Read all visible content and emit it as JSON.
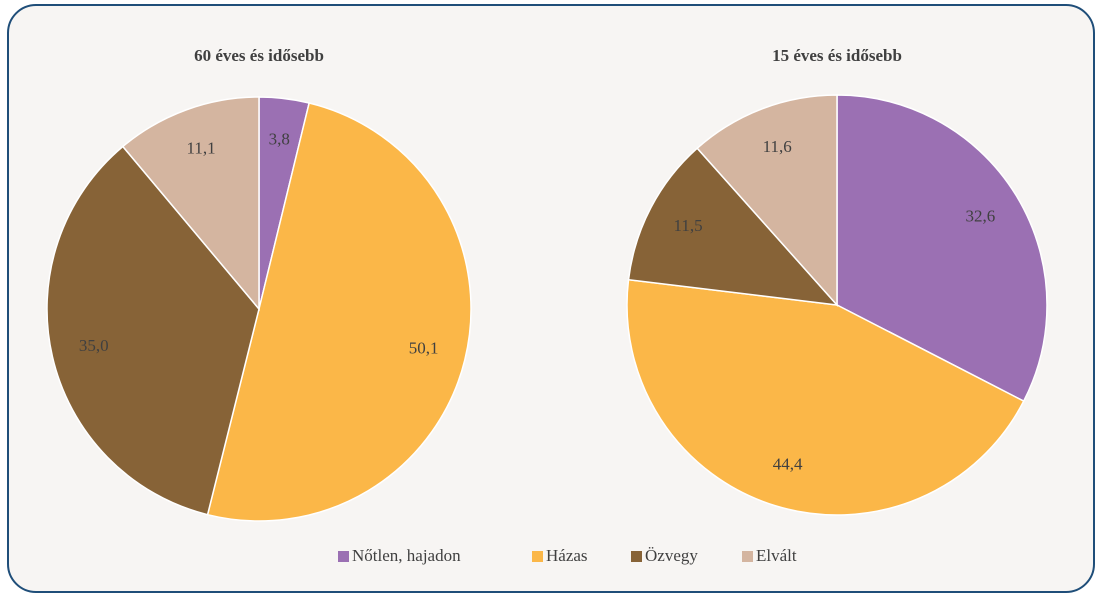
{
  "chart_data": [
    {
      "type": "pie",
      "title": "60 éves és idősebb",
      "values": [
        3.8,
        50.1,
        35.0,
        11.1
      ],
      "value_labels": [
        "3,8",
        "50,1",
        "35,0",
        "11,1"
      ]
    },
    {
      "type": "pie",
      "title": "15 éves és idősebb",
      "values": [
        32.6,
        44.4,
        11.5,
        11.6
      ],
      "value_labels": [
        "32,6",
        "44,4",
        "11,5",
        "11,6"
      ]
    }
  ],
  "legend": {
    "names": [
      "Nőtlen, hajadon",
      "Házas",
      "Özvegy",
      "Elvált"
    ],
    "colors": [
      "#9b70b3",
      "#fbb748",
      "#876337",
      "#d4b5a0"
    ],
    "position": "bottom"
  }
}
